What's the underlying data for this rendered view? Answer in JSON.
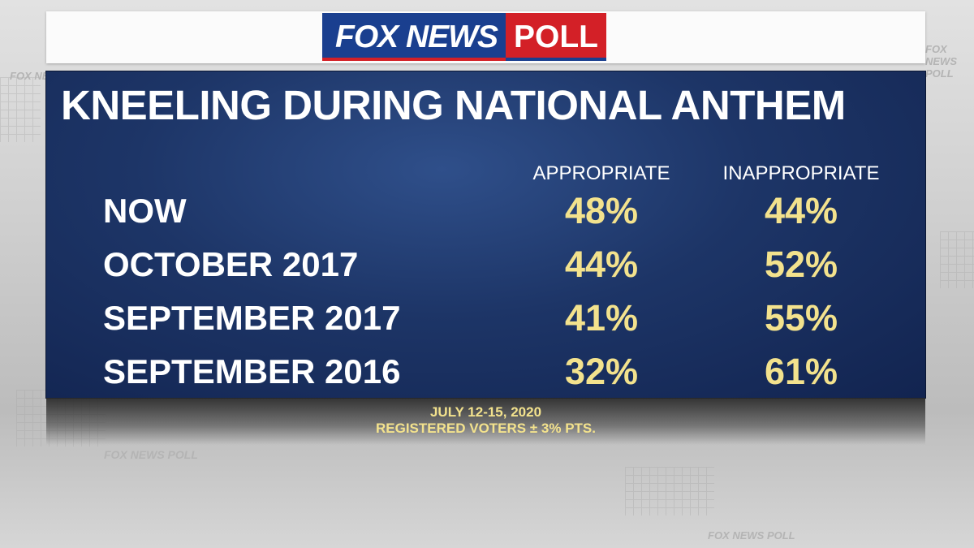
{
  "brand": {
    "logo_fox": "FOX NEWS",
    "logo_poll": "POLL",
    "colors": {
      "blue": "#1a3f8f",
      "red": "#d32027",
      "value_yellow": "#f3e28d",
      "panel_navy": "#1d3567"
    }
  },
  "background": {
    "watermark": "FOX NEWS POLL"
  },
  "chart_data": {
    "type": "table",
    "title": "KNEELING DURING NATIONAL ANTHEM",
    "columns": [
      "APPROPRIATE",
      "INAPPROPRIATE"
    ],
    "rows": [
      {
        "label": "NOW",
        "values": [
          "48%",
          "44%"
        ]
      },
      {
        "label": "OCTOBER 2017",
        "values": [
          "44%",
          "52%"
        ]
      },
      {
        "label": "SEPTEMBER 2017",
        "values": [
          "41%",
          "55%"
        ]
      },
      {
        "label": "SEPTEMBER 2016",
        "values": [
          "32%",
          "61%"
        ]
      }
    ],
    "series": [
      {
        "name": "APPROPRIATE",
        "values": [
          48,
          44,
          41,
          32
        ]
      },
      {
        "name": "INAPPROPRIATE",
        "values": [
          44,
          52,
          55,
          61
        ]
      }
    ],
    "unit": "%"
  },
  "footer": {
    "dates": "JULY 12-15, 2020",
    "sample": "REGISTERED VOTERS ± 3% PTS."
  }
}
